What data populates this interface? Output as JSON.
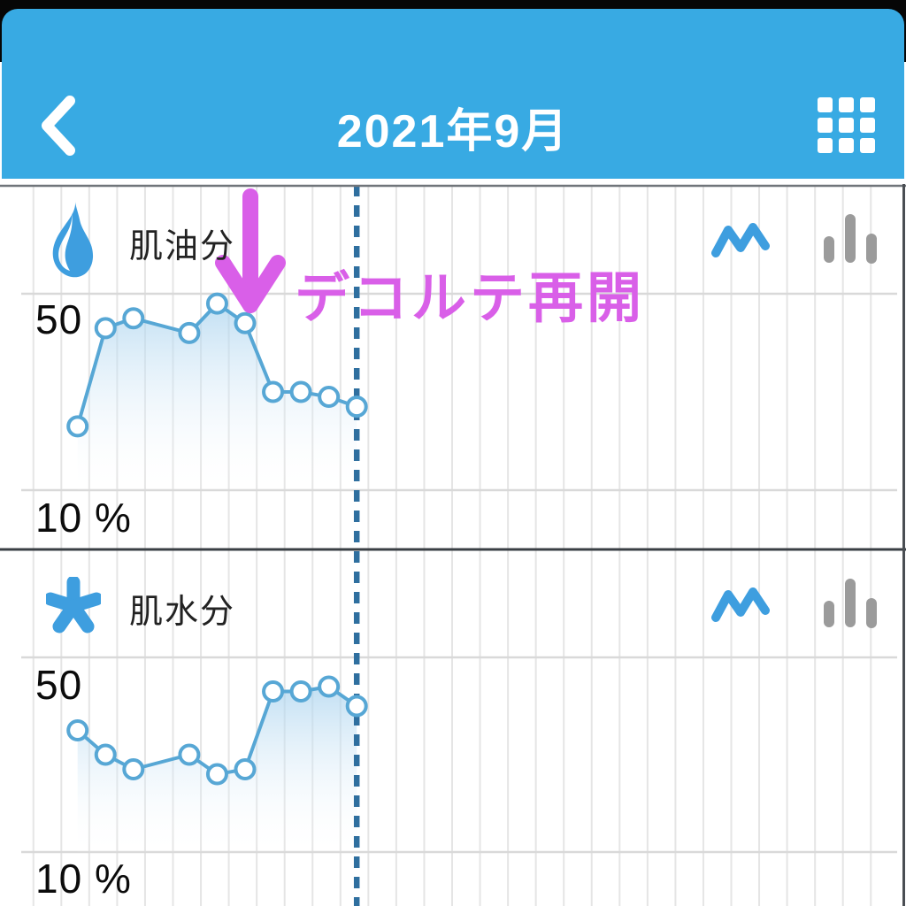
{
  "header": {
    "title": "2021年9月",
    "back_icon": "chevron-left-icon",
    "grid_icon": "grid-view-icon"
  },
  "annotation": {
    "text": "デコルテ再開",
    "arrow_icon": "down-arrow-icon"
  },
  "colors": {
    "header_blue": "#38AAE3",
    "line_blue": "#57A7D5",
    "fill_blue": "#A8D2EE",
    "dashed_blue": "#2F6F9F",
    "icon_blue": "#3E9EDF",
    "inactive_gray": "#9B9B9B",
    "annotation_magenta": "#D95FE8",
    "grid_gray": "#E5E5E5",
    "hgrid_gray": "#D9D9D9",
    "divider_dark": "#3A3F44",
    "divider_light": "#70757a"
  },
  "chart_data": [
    {
      "type": "line",
      "title": "肌油分",
      "icon": "flame-icon",
      "unit": "%",
      "y_axis": {
        "top_label": "50",
        "bottom_label": "10 %",
        "ymin": 10,
        "ymax": 50
      },
      "x_days": [
        1,
        2,
        3,
        5,
        6,
        7,
        8,
        9,
        10,
        11
      ],
      "values": [
        23,
        43,
        45,
        42,
        48,
        44,
        30,
        30,
        29,
        27
      ],
      "today_marker_day": 11,
      "view_toggles": [
        {
          "icon": "line-chart-icon",
          "active": true
        },
        {
          "icon": "bar-chart-icon",
          "active": false
        }
      ]
    },
    {
      "type": "line",
      "title": "肌水分",
      "icon": "asterisk-icon",
      "unit": "%",
      "y_axis": {
        "top_label": "50",
        "bottom_label": "10 %",
        "ymin": 10,
        "ymax": 50
      },
      "x_days": [
        1,
        2,
        3,
        5,
        6,
        7,
        8,
        9,
        10,
        11
      ],
      "values": [
        35,
        30,
        27,
        30,
        26,
        27,
        43,
        43,
        44,
        40
      ],
      "today_marker_day": 11,
      "view_toggles": [
        {
          "icon": "line-chart-icon",
          "active": true
        },
        {
          "icon": "bar-chart-icon",
          "active": false
        }
      ]
    }
  ]
}
